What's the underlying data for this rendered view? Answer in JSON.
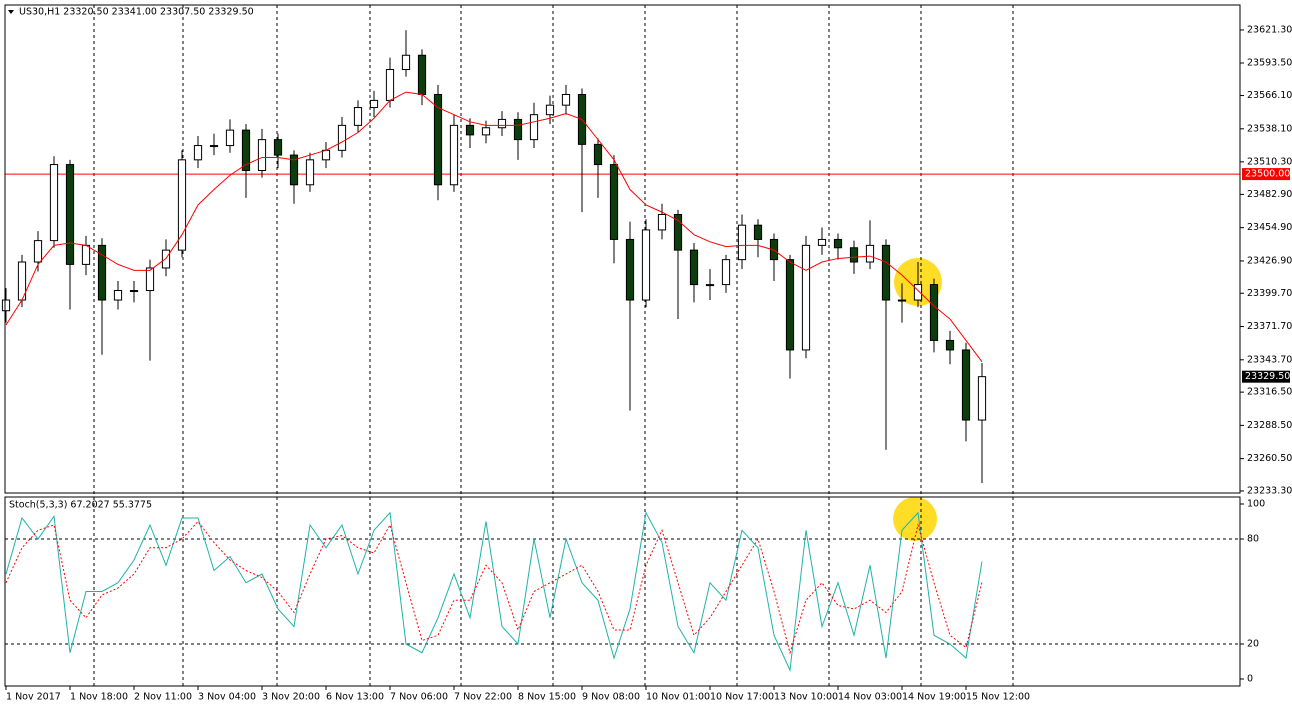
{
  "chart_data": [
    {
      "type": "candlestick",
      "title": "US30,H1  23320.50 23341.00 23307.50 23329.50",
      "x": [
        0,
        4,
        8,
        12,
        16,
        20,
        24,
        28,
        32,
        36,
        40,
        44,
        48,
        52,
        56,
        60,
        64,
        68,
        72,
        76,
        80,
        84,
        88,
        92,
        96,
        100,
        104,
        108,
        112,
        116,
        120,
        124,
        128,
        132,
        136,
        140,
        144,
        148,
        152,
        156,
        160,
        164,
        168,
        172,
        176,
        180,
        184,
        188,
        192,
        196,
        200,
        204,
        208,
        212,
        216,
        220,
        224,
        228,
        232,
        236,
        240,
        244
      ],
      "xlim": [
        -0.25,
        308.5
      ],
      "xticks": [
        {
          "value": 0,
          "label": "1 Nov 2017"
        },
        {
          "value": 16,
          "label": "1 Nov 18:00"
        },
        {
          "value": 32,
          "label": "2 Nov 11:00"
        },
        {
          "value": 48,
          "label": "3 Nov 04:00"
        },
        {
          "value": 64,
          "label": "3 Nov 20:00"
        },
        {
          "value": 80,
          "label": "6 Nov 13:00"
        },
        {
          "value": 96,
          "label": "7 Nov 06:00"
        },
        {
          "value": 112,
          "label": "7 Nov 22:00"
        },
        {
          "value": 128,
          "label": "8 Nov 15:00"
        },
        {
          "value": 144,
          "label": "9 Nov 08:00"
        },
        {
          "value": 160,
          "label": "10 Nov 01:00"
        },
        {
          "value": 176,
          "label": "10 Nov 17:00"
        },
        {
          "value": 192,
          "label": "13 Nov 10:00"
        },
        {
          "value": 208,
          "label": "14 Nov 03:00"
        },
        {
          "value": 224,
          "label": "14 Nov 19:00"
        },
        {
          "value": 240,
          "label": "15 Nov 12:00"
        }
      ],
      "ylim": [
        23231.6,
        23642.3
      ],
      "yticks": [
        {
          "value": 23621.3,
          "label": "23621.30"
        },
        {
          "value": 23593.5,
          "label": "23593.50"
        },
        {
          "value": 23566.1,
          "label": "23566.10"
        },
        {
          "value": 23538.1,
          "label": "23538.10"
        },
        {
          "value": 23510.3,
          "label": "23510.30"
        },
        {
          "value": 23482.9,
          "label": "23482.90"
        },
        {
          "value": 23454.9,
          "label": "23454.90"
        },
        {
          "value": 23426.9,
          "label": "23426.90"
        },
        {
          "value": 23399.7,
          "label": "23399.70"
        },
        {
          "value": 23371.7,
          "label": "23371.70"
        },
        {
          "value": 23343.7,
          "label": "23343.70"
        },
        {
          "value": 23316.5,
          "label": "23316.50"
        },
        {
          "value": 23288.5,
          "label": "23288.50"
        },
        {
          "value": 23260.5,
          "label": "23260.50"
        },
        {
          "value": 23233.3,
          "label": "23233.30"
        }
      ],
      "open": [
        23385,
        23394,
        23426,
        23444,
        23508,
        23424,
        23440,
        23394,
        23402,
        23402,
        23421,
        23436,
        23512,
        23524,
        23524,
        23537,
        23503,
        23529,
        23516,
        23491,
        23512,
        23520,
        23541,
        23556,
        23562,
        23588,
        23600,
        23567,
        23491,
        23541,
        23533,
        23539,
        23546,
        23529,
        23550,
        23558,
        23567,
        23525,
        23508,
        23445,
        23394,
        23453,
        23466,
        23436,
        23407,
        23407,
        23428,
        23457,
        23445,
        23428,
        23352,
        23440,
        23445,
        23438,
        23426,
        23440,
        23394,
        23394,
        23407,
        23360,
        23352,
        23293
      ],
      "high": [
        23404,
        23432,
        23452,
        23515,
        23512,
        23448,
        23446,
        23410,
        23410,
        23428,
        23445,
        23520,
        23532,
        23534,
        23546,
        23542,
        23538,
        23534,
        23520,
        23518,
        23527,
        23548,
        23562,
        23570,
        23598,
        23621,
        23605,
        23575,
        23550,
        23547,
        23545,
        23553,
        23552,
        23560,
        23566,
        23575,
        23572,
        23530,
        23516,
        23460,
        23462,
        23475,
        23470,
        23442,
        23420,
        23432,
        23466,
        23462,
        23450,
        23432,
        23448,
        23455,
        23450,
        23444,
        23461,
        23445,
        23408,
        23426,
        23412,
        23368,
        23358,
        23341
      ],
      "low": [
        23375,
        23388,
        23418,
        23438,
        23386,
        23415,
        23348,
        23386,
        23392,
        23343,
        23414,
        23430,
        23505,
        23516,
        23518,
        23480,
        23497,
        23505,
        23475,
        23485,
        23505,
        23514,
        23535,
        23548,
        23556,
        23582,
        23558,
        23478,
        23485,
        23522,
        23526,
        23532,
        23512,
        23522,
        23542,
        23550,
        23468,
        23480,
        23425,
        23301,
        23388,
        23445,
        23378,
        23392,
        23394,
        23400,
        23420,
        23430,
        23410,
        23328,
        23345,
        23432,
        23428,
        23416,
        23420,
        23268,
        23375,
        23388,
        23350,
        23340,
        23275,
        23240
      ],
      "close": [
        23394,
        23426,
        23444,
        23508,
        23424,
        23440,
        23394,
        23402,
        23402,
        23421,
        23436,
        23512,
        23524,
        23524,
        23537,
        23503,
        23529,
        23516,
        23491,
        23512,
        23520,
        23541,
        23556,
        23562,
        23588,
        23600,
        23567,
        23491,
        23541,
        23533,
        23539,
        23546,
        23529,
        23550,
        23558,
        23567,
        23525,
        23508,
        23445,
        23394,
        23453,
        23466,
        23436,
        23407,
        23407,
        23428,
        23457,
        23445,
        23428,
        23352,
        23440,
        23445,
        23438,
        23426,
        23440,
        23394,
        23394,
        23407,
        23360,
        23352,
        23293,
        23329.5
      ],
      "up_color": "#ffffff",
      "down_color": "#0d3d0d",
      "wick_color": "#000000",
      "overlay": {
        "color": "#ff0000",
        "values": [
          23373,
          23394,
          23424,
          23440,
          23442,
          23440,
          23432,
          23424,
          23419,
          23419,
          23429,
          23449,
          23474,
          23487,
          23499,
          23508,
          23514,
          23514,
          23512,
          23516,
          23520,
          23527,
          23535,
          23547,
          23562,
          23569,
          23567,
          23556,
          23550,
          23544,
          23541,
          23541,
          23541,
          23544,
          23547,
          23551,
          23546,
          23529,
          23512,
          23487,
          23474,
          23468,
          23461,
          23449,
          23443,
          23439,
          23440,
          23440,
          23436,
          23426,
          23419,
          23426,
          23429,
          23430,
          23431,
          23426,
          23415,
          23402,
          23389,
          23378,
          23360,
          23342
        ]
      },
      "hline": {
        "value": 23500,
        "label": "23500.00",
        "color": "#ff0000"
      },
      "last_price": {
        "value": 23329.5,
        "label": "23329.50"
      }
    },
    {
      "type": "line",
      "title": "Stoch(5,3,3) 67.2027 55.3775",
      "x": [
        0,
        4,
        8,
        12,
        16,
        20,
        24,
        28,
        32,
        36,
        40,
        44,
        48,
        52,
        56,
        60,
        64,
        68,
        72,
        76,
        80,
        84,
        88,
        92,
        96,
        100,
        104,
        108,
        112,
        116,
        120,
        124,
        128,
        132,
        136,
        140,
        144,
        148,
        152,
        156,
        160,
        164,
        168,
        172,
        176,
        180,
        184,
        188,
        192,
        196,
        200,
        204,
        208,
        212,
        216,
        220,
        224,
        228,
        232,
        236,
        240,
        244
      ],
      "xlim": [
        -0.25,
        308.5
      ],
      "ylim": [
        -4,
        104
      ],
      "yticks": [
        0,
        20,
        80,
        100
      ],
      "levels": [
        20,
        80
      ],
      "series": [
        {
          "color": "#20b2aa",
          "values": [
            60,
            92,
            80,
            93,
            15,
            50,
            50,
            55,
            68,
            88,
            65,
            92,
            92,
            62,
            70,
            55,
            60,
            40,
            30,
            88,
            75,
            88,
            60,
            85,
            95,
            20,
            15,
            35,
            60,
            35,
            90,
            30,
            20,
            80,
            35,
            80,
            55,
            45,
            12,
            40,
            95,
            78,
            30,
            15,
            55,
            45,
            85,
            75,
            25,
            5,
            85,
            30,
            55,
            25,
            65,
            12,
            85,
            95,
            25,
            20,
            12,
            67.2
          ]
        },
        {
          "color": "#ff0000",
          "dashed": true,
          "values": [
            55,
            75,
            85,
            88,
            45,
            35,
            48,
            52,
            60,
            75,
            75,
            80,
            90,
            78,
            68,
            62,
            58,
            50,
            38,
            60,
            80,
            82,
            75,
            72,
            88,
            55,
            22,
            25,
            45,
            45,
            65,
            55,
            28,
            50,
            55,
            60,
            65,
            50,
            28,
            28,
            65,
            85,
            55,
            25,
            35,
            50,
            65,
            80,
            50,
            15,
            45,
            55,
            42,
            40,
            45,
            38,
            50,
            88,
            55,
            25,
            18,
            55.4
          ]
        }
      ]
    }
  ]
}
